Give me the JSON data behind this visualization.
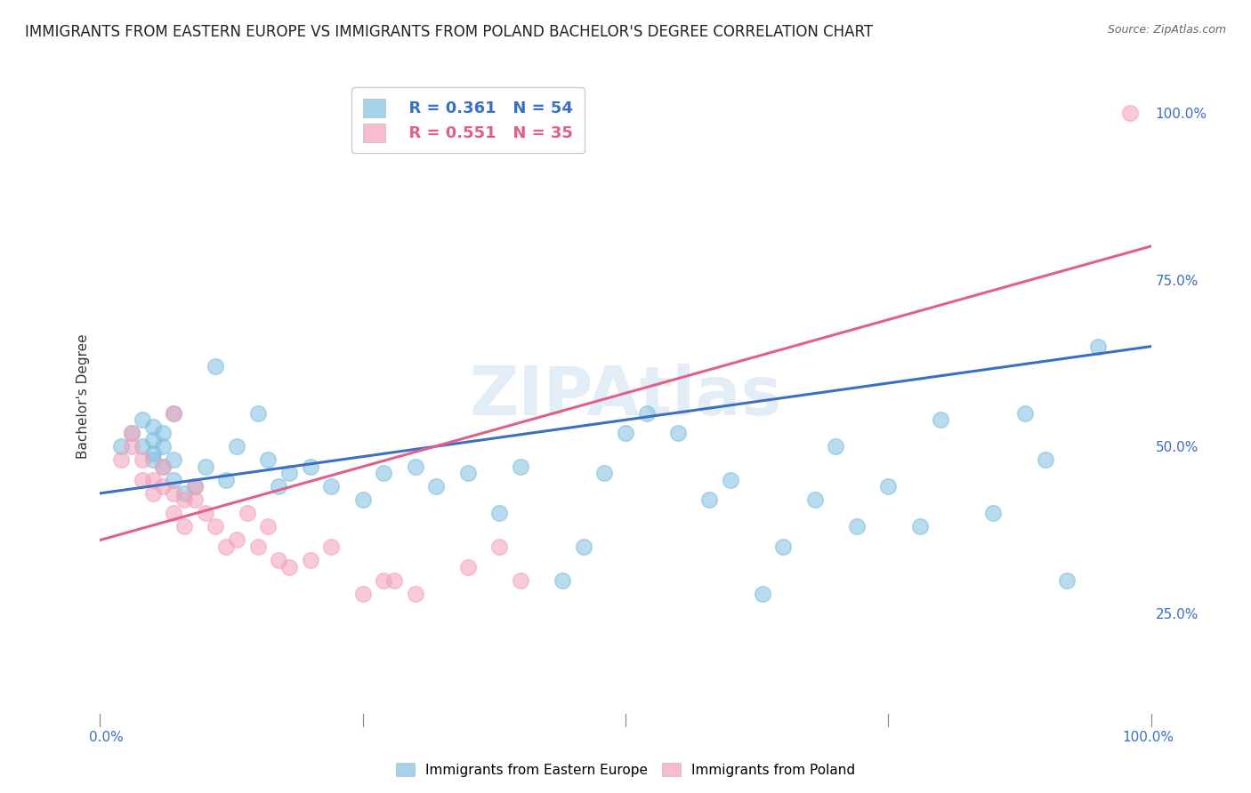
{
  "title": "IMMIGRANTS FROM EASTERN EUROPE VS IMMIGRANTS FROM POLAND BACHELOR'S DEGREE CORRELATION CHART",
  "source": "Source: ZipAtlas.com",
  "ylabel": "Bachelor's Degree",
  "watermark": "ZIPAtlas",
  "legend_r1": "R = 0.361",
  "legend_n1": "N = 54",
  "legend_r2": "R = 0.551",
  "legend_n2": "N = 35",
  "color_blue": "#7fbfdf",
  "color_pink": "#f4a0b8",
  "color_line_blue": "#3a6fc4",
  "color_line_pink": "#e0608a",
  "ytick_labels": [
    "25.0%",
    "50.0%",
    "75.0%",
    "100.0%"
  ],
  "ytick_values": [
    0.25,
    0.5,
    0.75,
    1.0
  ],
  "blue_x": [
    0.02,
    0.03,
    0.04,
    0.04,
    0.05,
    0.05,
    0.05,
    0.05,
    0.06,
    0.06,
    0.06,
    0.07,
    0.07,
    0.07,
    0.08,
    0.09,
    0.1,
    0.11,
    0.12,
    0.13,
    0.15,
    0.16,
    0.17,
    0.18,
    0.2,
    0.22,
    0.25,
    0.27,
    0.3,
    0.32,
    0.35,
    0.38,
    0.4,
    0.44,
    0.46,
    0.48,
    0.5,
    0.52,
    0.55,
    0.58,
    0.6,
    0.63,
    0.65,
    0.68,
    0.7,
    0.72,
    0.75,
    0.78,
    0.8,
    0.85,
    0.88,
    0.9,
    0.92,
    0.95
  ],
  "blue_y": [
    0.5,
    0.52,
    0.5,
    0.54,
    0.51,
    0.48,
    0.49,
    0.53,
    0.47,
    0.5,
    0.52,
    0.55,
    0.48,
    0.45,
    0.43,
    0.44,
    0.47,
    0.62,
    0.45,
    0.5,
    0.55,
    0.48,
    0.44,
    0.46,
    0.47,
    0.44,
    0.42,
    0.46,
    0.47,
    0.44,
    0.46,
    0.4,
    0.47,
    0.3,
    0.35,
    0.46,
    0.52,
    0.55,
    0.52,
    0.42,
    0.45,
    0.28,
    0.35,
    0.42,
    0.5,
    0.38,
    0.44,
    0.38,
    0.54,
    0.4,
    0.55,
    0.48,
    0.3,
    0.65
  ],
  "pink_x": [
    0.02,
    0.03,
    0.03,
    0.04,
    0.04,
    0.05,
    0.05,
    0.06,
    0.06,
    0.07,
    0.07,
    0.07,
    0.08,
    0.08,
    0.09,
    0.09,
    0.1,
    0.11,
    0.12,
    0.13,
    0.14,
    0.15,
    0.16,
    0.17,
    0.18,
    0.2,
    0.22,
    0.25,
    0.27,
    0.28,
    0.3,
    0.35,
    0.38,
    0.4,
    0.98
  ],
  "pink_y": [
    0.48,
    0.52,
    0.5,
    0.48,
    0.45,
    0.43,
    0.45,
    0.44,
    0.47,
    0.55,
    0.4,
    0.43,
    0.42,
    0.38,
    0.42,
    0.44,
    0.4,
    0.38,
    0.35,
    0.36,
    0.4,
    0.35,
    0.38,
    0.33,
    0.32,
    0.33,
    0.35,
    0.28,
    0.3,
    0.3,
    0.28,
    0.32,
    0.35,
    0.3,
    1.0
  ],
  "blue_size": 160,
  "pink_size": 160,
  "fig_bg": "#ffffff",
  "grid_color": "#c8c8c8",
  "title_fontsize": 12,
  "axis_label_fontsize": 11,
  "tick_fontsize": 11,
  "xlim": [
    0.0,
    1.0
  ],
  "ylim": [
    0.1,
    1.05
  ]
}
